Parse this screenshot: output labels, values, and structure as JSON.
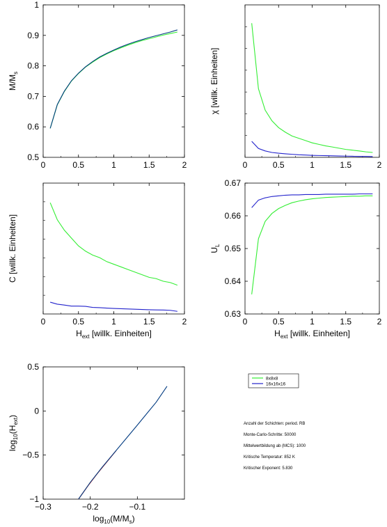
{
  "colors": {
    "green": "#33ee33",
    "blue": "#2222cc",
    "darkblue": "#003a80",
    "red": "#cc2222",
    "axis": "#000000"
  },
  "legend": {
    "entries": [
      {
        "label": "8x8x8",
        "color": "#33ee33"
      },
      {
        "label": "16x16x16",
        "color": "#2222cc"
      }
    ]
  },
  "info": {
    "lines": [
      "Anzahl der Schichten: period. RB",
      "Monte-Carlo-Schritte: 50000",
      "Mittelwertbildung ab (MCS): 1000",
      "Kritische Temperatur: 852 K",
      "Kritischer Exponent: 5.830"
    ]
  },
  "chart_data": [
    {
      "id": "magnetization",
      "type": "line",
      "ylabel": "M/M_s",
      "xlabel": "",
      "xlim": [
        0,
        2
      ],
      "ylim": [
        0.5,
        1.0
      ],
      "xticks": [
        "0",
        "0.5",
        "1",
        "1.5",
        "2"
      ],
      "yticks": [
        "0.5",
        "0.6",
        "0.7",
        "0.8",
        "0.9",
        "1"
      ],
      "series": [
        {
          "color": "#33ee33",
          "x": [
            0.1,
            0.2,
            0.3,
            0.4,
            0.5,
            0.6,
            0.7,
            0.8,
            0.9,
            1.0,
            1.1,
            1.2,
            1.3,
            1.4,
            1.5,
            1.6,
            1.7,
            1.8,
            1.9
          ],
          "y": [
            0.595,
            0.672,
            0.716,
            0.75,
            0.775,
            0.796,
            0.812,
            0.827,
            0.839,
            0.85,
            0.859,
            0.868,
            0.876,
            0.883,
            0.889,
            0.895,
            0.901,
            0.906,
            0.911
          ]
        },
        {
          "color": "#003a80",
          "x": [
            0.1,
            0.2,
            0.3,
            0.4,
            0.5,
            0.6,
            0.7,
            0.8,
            0.9,
            1.0,
            1.1,
            1.2,
            1.3,
            1.4,
            1.5,
            1.6,
            1.7,
            1.8,
            1.9
          ],
          "y": [
            0.595,
            0.673,
            0.717,
            0.751,
            0.776,
            0.797,
            0.814,
            0.829,
            0.841,
            0.852,
            0.862,
            0.871,
            0.879,
            0.886,
            0.893,
            0.899,
            0.905,
            0.911,
            0.918
          ]
        }
      ]
    },
    {
      "id": "susceptibility",
      "type": "line",
      "ylabel": "χ [willk. Einheiten]",
      "xlabel": "",
      "xlim": [
        0,
        2
      ],
      "ylim": [
        0,
        1
      ],
      "xticks": [
        "0",
        "0.5",
        "1",
        "1.5",
        "2"
      ],
      "yticks": [],
      "series": [
        {
          "color": "#33ee33",
          "x": [
            0.1,
            0.2,
            0.3,
            0.4,
            0.5,
            0.6,
            0.7,
            0.8,
            0.9,
            1.0,
            1.1,
            1.2,
            1.3,
            1.4,
            1.5,
            1.6,
            1.7,
            1.8,
            1.9
          ],
          "y": [
            0.88,
            0.45,
            0.31,
            0.24,
            0.195,
            0.165,
            0.14,
            0.125,
            0.11,
            0.095,
            0.085,
            0.075,
            0.068,
            0.06,
            0.052,
            0.047,
            0.042,
            0.036,
            0.032
          ]
        },
        {
          "color": "#2222cc",
          "x": [
            0.1,
            0.2,
            0.3,
            0.4,
            0.5,
            0.6,
            0.7,
            0.8,
            0.9,
            1.0,
            1.1,
            1.2,
            1.3,
            1.4,
            1.5,
            1.6,
            1.7,
            1.8,
            1.9
          ],
          "y": [
            0.105,
            0.058,
            0.042,
            0.032,
            0.027,
            0.023,
            0.02,
            0.017,
            0.015,
            0.013,
            0.012,
            0.011,
            0.01,
            0.009,
            0.008,
            0.007,
            0.006,
            0.006,
            0.005
          ]
        }
      ]
    },
    {
      "id": "specific_heat",
      "type": "line",
      "ylabel": "C [willk. Einheiten]",
      "xlabel": "H_ext [willk. Einheiten]",
      "xlim": [
        0,
        2
      ],
      "ylim": [
        0,
        1
      ],
      "xticks": [
        "0",
        "0.5",
        "1",
        "1.5",
        "2"
      ],
      "yticks": [],
      "series": [
        {
          "color": "#33ee33",
          "x": [
            0.1,
            0.2,
            0.3,
            0.4,
            0.5,
            0.6,
            0.7,
            0.8,
            0.9,
            1.0,
            1.1,
            1.2,
            1.3,
            1.4,
            1.5,
            1.6,
            1.7,
            1.8,
            1.9
          ],
          "y": [
            0.85,
            0.72,
            0.64,
            0.58,
            0.52,
            0.48,
            0.45,
            0.43,
            0.4,
            0.38,
            0.36,
            0.34,
            0.32,
            0.3,
            0.28,
            0.27,
            0.25,
            0.24,
            0.22
          ]
        },
        {
          "color": "#2222cc",
          "x": [
            0.1,
            0.2,
            0.3,
            0.4,
            0.5,
            0.6,
            0.7,
            0.8,
            0.9,
            1.0,
            1.1,
            1.2,
            1.3,
            1.4,
            1.5,
            1.6,
            1.7,
            1.8,
            1.9
          ],
          "y": [
            0.09,
            0.075,
            0.068,
            0.06,
            0.06,
            0.058,
            0.05,
            0.048,
            0.045,
            0.042,
            0.04,
            0.038,
            0.036,
            0.034,
            0.032,
            0.031,
            0.03,
            0.028,
            0.02
          ]
        }
      ]
    },
    {
      "id": "binder",
      "type": "line",
      "ylabel": "U_L",
      "xlabel": "H_ext [willk. Einheiten]",
      "xlim": [
        0,
        2
      ],
      "ylim": [
        0.63,
        0.67
      ],
      "xticks": [
        "0",
        "0.5",
        "1",
        "1.5",
        "2"
      ],
      "yticks": [
        "0.63",
        "0.64",
        "0.65",
        "0.66",
        "0.67"
      ],
      "series": [
        {
          "color": "#33ee33",
          "x": [
            0.1,
            0.2,
            0.3,
            0.4,
            0.5,
            0.6,
            0.7,
            0.8,
            0.9,
            1.0,
            1.1,
            1.2,
            1.3,
            1.4,
            1.5,
            1.6,
            1.7,
            1.8,
            1.9
          ],
          "y": [
            0.636,
            0.653,
            0.6583,
            0.6607,
            0.6622,
            0.6632,
            0.664,
            0.6645,
            0.6649,
            0.6652,
            0.6654,
            0.6656,
            0.6657,
            0.6658,
            0.6659,
            0.666,
            0.666,
            0.6661,
            0.6661
          ]
        },
        {
          "color": "#2222cc",
          "x": [
            0.1,
            0.2,
            0.3,
            0.4,
            0.5,
            0.6,
            0.7,
            0.8,
            0.9,
            1.0,
            1.1,
            1.2,
            1.3,
            1.4,
            1.5,
            1.6,
            1.7,
            1.8,
            1.9
          ],
          "y": [
            0.6625,
            0.6648,
            0.6655,
            0.6659,
            0.6661,
            0.6663,
            0.6664,
            0.6664,
            0.6665,
            0.6665,
            0.6665,
            0.6666,
            0.6666,
            0.6666,
            0.6666,
            0.6666,
            0.6667,
            0.6667,
            0.6667
          ]
        }
      ]
    },
    {
      "id": "loglog",
      "type": "line",
      "ylabel": "log10(H_ext)",
      "xlabel": "log10(M/M_s)",
      "xlim": [
        -0.3,
        0.0
      ],
      "ylim": [
        -1,
        0.5
      ],
      "xticks": [
        "−0.3",
        "−0.2",
        "−0.1"
      ],
      "xtick_values": [
        -0.3,
        -0.2,
        -0.1
      ],
      "yticks": [
        "−1",
        "−0.5",
        "0",
        "0.5"
      ],
      "ytick_values": [
        -1,
        -0.5,
        0,
        0.5
      ],
      "series": [
        {
          "color": "#cc2222",
          "x": [
            -0.225,
            -0.205,
            -0.185,
            -0.165,
            -0.145
          ],
          "y": [
            -1.0,
            -0.85,
            -0.71,
            -0.58,
            -0.45
          ]
        },
        {
          "color": "#003a80",
          "x": [
            -0.225,
            -0.2,
            -0.175,
            -0.15,
            -0.125,
            -0.1,
            -0.08,
            -0.06,
            -0.037
          ],
          "y": [
            -1.0,
            -0.81,
            -0.64,
            -0.48,
            -0.32,
            -0.16,
            -0.03,
            0.1,
            0.28
          ]
        }
      ]
    }
  ]
}
